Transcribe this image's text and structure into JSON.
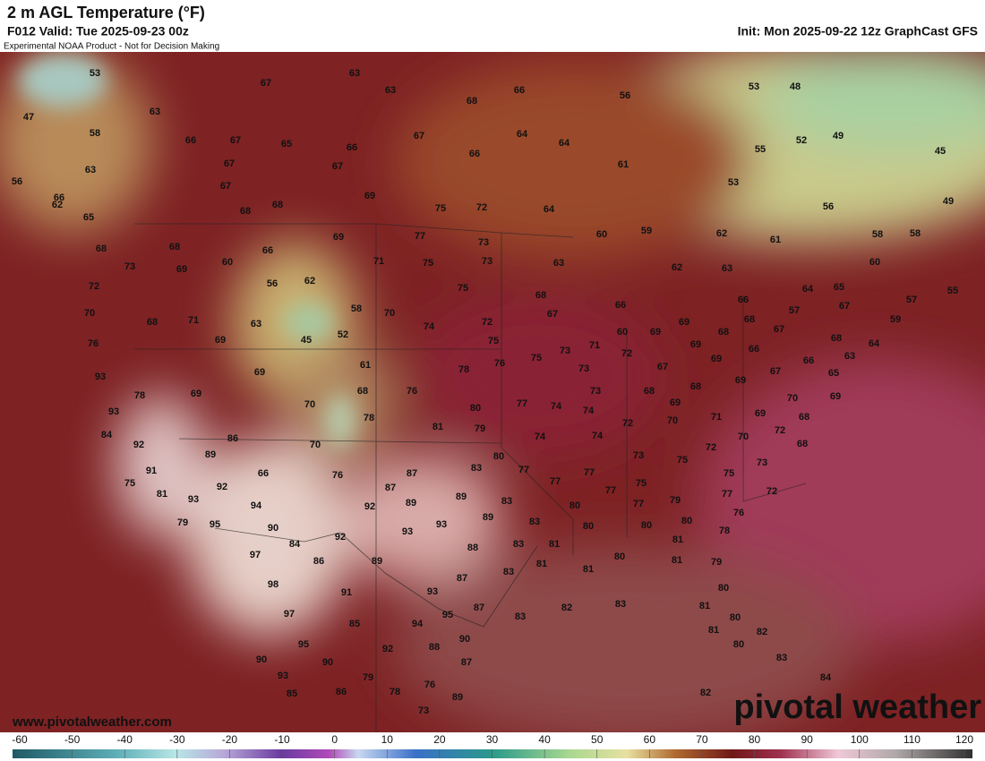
{
  "header": {
    "title": "2 m AGL Temperature (°F)",
    "valid": "F012 Valid: Tue 2025-09-23 00z",
    "init": "Init: Mon 2025-09-22 12z GraphCast GFS",
    "disclaimer": "Experimental NOAA Product - Not for Decision Making"
  },
  "map": {
    "labels": [
      53,
      63,
      67,
      63,
      66,
      56,
      68,
      53,
      48,
      47,
      63,
      58,
      66,
      67,
      65,
      66,
      67,
      64,
      64,
      66,
      52,
      49,
      55,
      45,
      63,
      67,
      67,
      61,
      56,
      66,
      67,
      69,
      53,
      56,
      49,
      62,
      65,
      68,
      68,
      75,
      72,
      64,
      59,
      60,
      62,
      61,
      58,
      58,
      68,
      68,
      66,
      69,
      77,
      73,
      73,
      69,
      60,
      71,
      75,
      73,
      63,
      62,
      63,
      60,
      72,
      56,
      62,
      75,
      68,
      64,
      65,
      57,
      55,
      70,
      68,
      71,
      63,
      58,
      70,
      74,
      72,
      67,
      66,
      66,
      57,
      67,
      59,
      76,
      69,
      45,
      52,
      75,
      75,
      73,
      71,
      60,
      69,
      69,
      68,
      67,
      64,
      68,
      72,
      69,
      68,
      66,
      63,
      93,
      69,
      61,
      78,
      76,
      73,
      67,
      69,
      67,
      66,
      65,
      78,
      69,
      68,
      76,
      73,
      68,
      68,
      69,
      69,
      93,
      70,
      80,
      77,
      74,
      74,
      69,
      70,
      71,
      69,
      70,
      68,
      78,
      81,
      79,
      72,
      84,
      72,
      70,
      74,
      74,
      86,
      92,
      70,
      72,
      68,
      89,
      80,
      73,
      75,
      73,
      91,
      66,
      76,
      87,
      83,
      77,
      77,
      75,
      75,
      92,
      87,
      77,
      75,
      81,
      93,
      89,
      83,
      77,
      79,
      77,
      72,
      89,
      94,
      92,
      77,
      76,
      80,
      79,
      95,
      90,
      93,
      89,
      83,
      80,
      80,
      80,
      78,
      92,
      93,
      81,
      84,
      97,
      88,
      83,
      81,
      86,
      89,
      81,
      81,
      80,
      81,
      79,
      83,
      87,
      98,
      93,
      91,
      80,
      81,
      87,
      83,
      82,
      83,
      97,
      85,
      95,
      94,
      80,
      95,
      90,
      88,
      82,
      81,
      92,
      80,
      90,
      90,
      87,
      83,
      93,
      79,
      76,
      84,
      85,
      86,
      78,
      89,
      82,
      73
    ]
  },
  "colorbar": {
    "ticks": [
      -60,
      -50,
      -40,
      -30,
      -20,
      -10,
      0,
      10,
      20,
      30,
      40,
      50,
      60,
      70,
      80,
      90,
      100,
      110,
      120
    ]
  },
  "footer": {
    "url": "www.pivotalweather.com",
    "watermark": "pivotal weather"
  }
}
